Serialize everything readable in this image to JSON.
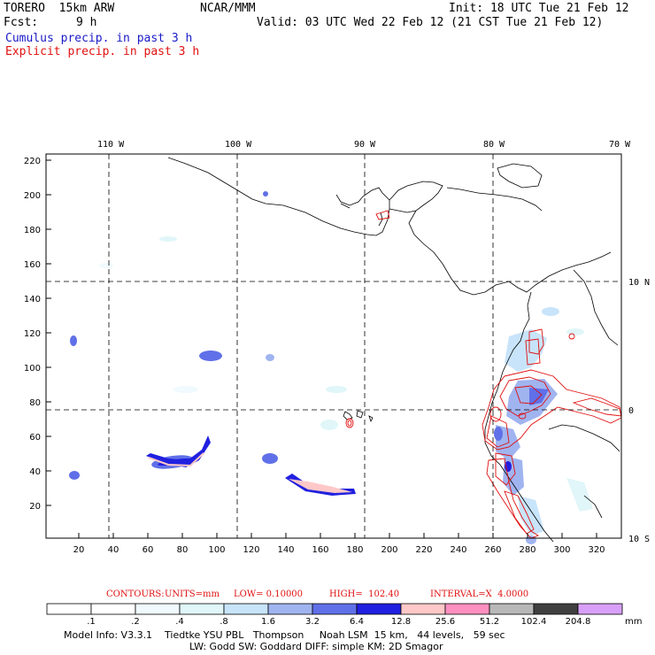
{
  "header": {
    "model": "TORERO  15km ARW",
    "org": "NCAR/MMM",
    "init": "Init: 18 UTC Tue 21 Feb 12",
    "fcst_label": "Fcst:",
    "fcst_value": "9 h",
    "valid": "Valid: 03 UTC Wed 22 Feb 12 (21 CST Tue 21 Feb 12)",
    "cumulus": "Cumulus precip. in past 3 h",
    "explicit": "Explicit precip. in past 3 h"
  },
  "colors": {
    "cumulus_text": "#1a1ac8",
    "explicit_text": "#e01010",
    "contour_line": "#e01010",
    "coastline": "#000000"
  },
  "map": {
    "top_lon_labels": [
      "110 W",
      "100 W",
      "90 W",
      "80 W",
      "70 W"
    ],
    "right_lat_labels": [
      "10 N",
      "0",
      "10 S"
    ],
    "y_ticks": [
      "220",
      "200",
      "180",
      "160",
      "140",
      "120",
      "100",
      "80",
      "60",
      "40",
      "20"
    ],
    "x_ticks": [
      "20",
      "40",
      "60",
      "80",
      "100",
      "120",
      "140",
      "160",
      "180",
      "200",
      "220",
      "240",
      "260",
      "280",
      "300",
      "320"
    ],
    "gridlines": "dashed"
  },
  "contour_info": {
    "title": "CONTOURS:",
    "units": "UNITS=mm",
    "low": "LOW= 0.10000",
    "high": "HIGH=  102.40",
    "interval": "INTERVAL=X  4.0000"
  },
  "colorbar": {
    "labels": [
      ".1",
      ".2",
      ".4",
      ".8",
      "1.6",
      "3.2",
      "6.4",
      "12.8",
      "25.6",
      "51.2",
      "102.4",
      "204.8"
    ],
    "unit": "mm",
    "colors": [
      "#ffffff",
      "#ffffff",
      "#f0faff",
      "#e0f6f8",
      "#c8e4fa",
      "#a0b4f0",
      "#6070e8",
      "#2020e0",
      "#ffc8c8",
      "#ff90c0",
      "#b8b8b8",
      "#404040",
      "#d8a0f8"
    ]
  },
  "footer": {
    "line1": "Model Info: V3.3.1    Tiedtke YSU PBL   Thompson     Noah LSM  15 km,   44 levels,   59 sec",
    "line2": "LW: Godd SW: Goddard DIFF: simple KM: 2D Smagor"
  }
}
